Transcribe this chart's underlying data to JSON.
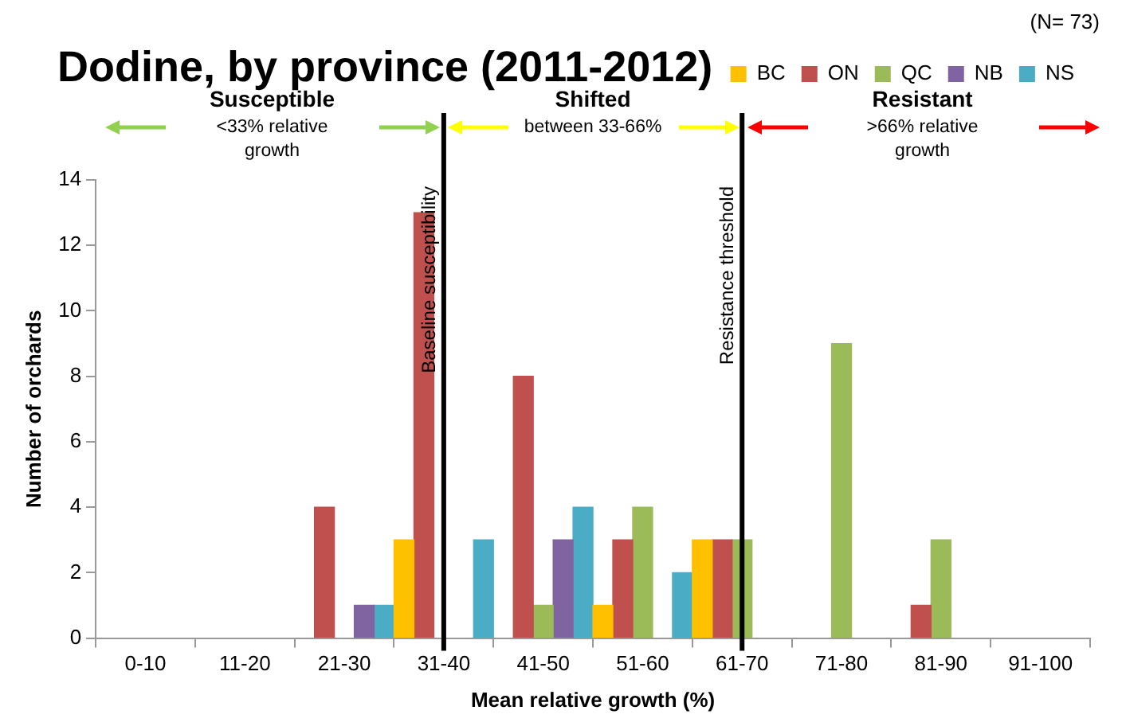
{
  "chart_data": {
    "type": "bar",
    "title": "Dodine, by province (2011-2012)",
    "xlabel": "Mean relative growth (%)",
    "ylabel": "Number of orchards",
    "categories": [
      "0-10",
      "11-20",
      "21-30",
      "31-40",
      "41-50",
      "51-60",
      "61-70",
      "71-80",
      "81-90",
      "91-100"
    ],
    "series": [
      {
        "name": "BC",
        "color": "#ffc000",
        "values": [
          0,
          0,
          0,
          3,
          0,
          1,
          3,
          0,
          0,
          0
        ]
      },
      {
        "name": "ON",
        "color": "#c0504d",
        "values": [
          0,
          0,
          4,
          13,
          8,
          3,
          3,
          0,
          1,
          0
        ]
      },
      {
        "name": "QC",
        "color": "#9bbb59",
        "values": [
          0,
          0,
          0,
          0,
          1,
          4,
          3,
          9,
          3,
          0
        ]
      },
      {
        "name": "NB",
        "color": "#8064a2",
        "values": [
          0,
          0,
          1,
          0,
          3,
          0,
          0,
          0,
          0,
          0
        ]
      },
      {
        "name": "NS",
        "color": "#4bacc6",
        "values": [
          0,
          0,
          1,
          3,
          4,
          2,
          0,
          0,
          0,
          0
        ]
      }
    ],
    "ylim": [
      0,
      14
    ],
    "yticks": [
      0,
      2,
      4,
      6,
      8,
      10,
      12,
      14
    ],
    "grid": false,
    "legend": "top right",
    "ref_lines": [
      {
        "axis": "x",
        "value": "31-40",
        "label": "Baseline susceptibility",
        "color": "#000000"
      },
      {
        "axis": "x",
        "value": "61-70",
        "label": "Resistance threshold",
        "color": "#000000"
      }
    ],
    "annotations": [
      "(N= 73)",
      "Susceptible",
      "<33% relative growth",
      "Shifted",
      "between 33-66%",
      "Resistant",
      ">66% relative growth"
    ]
  }
}
